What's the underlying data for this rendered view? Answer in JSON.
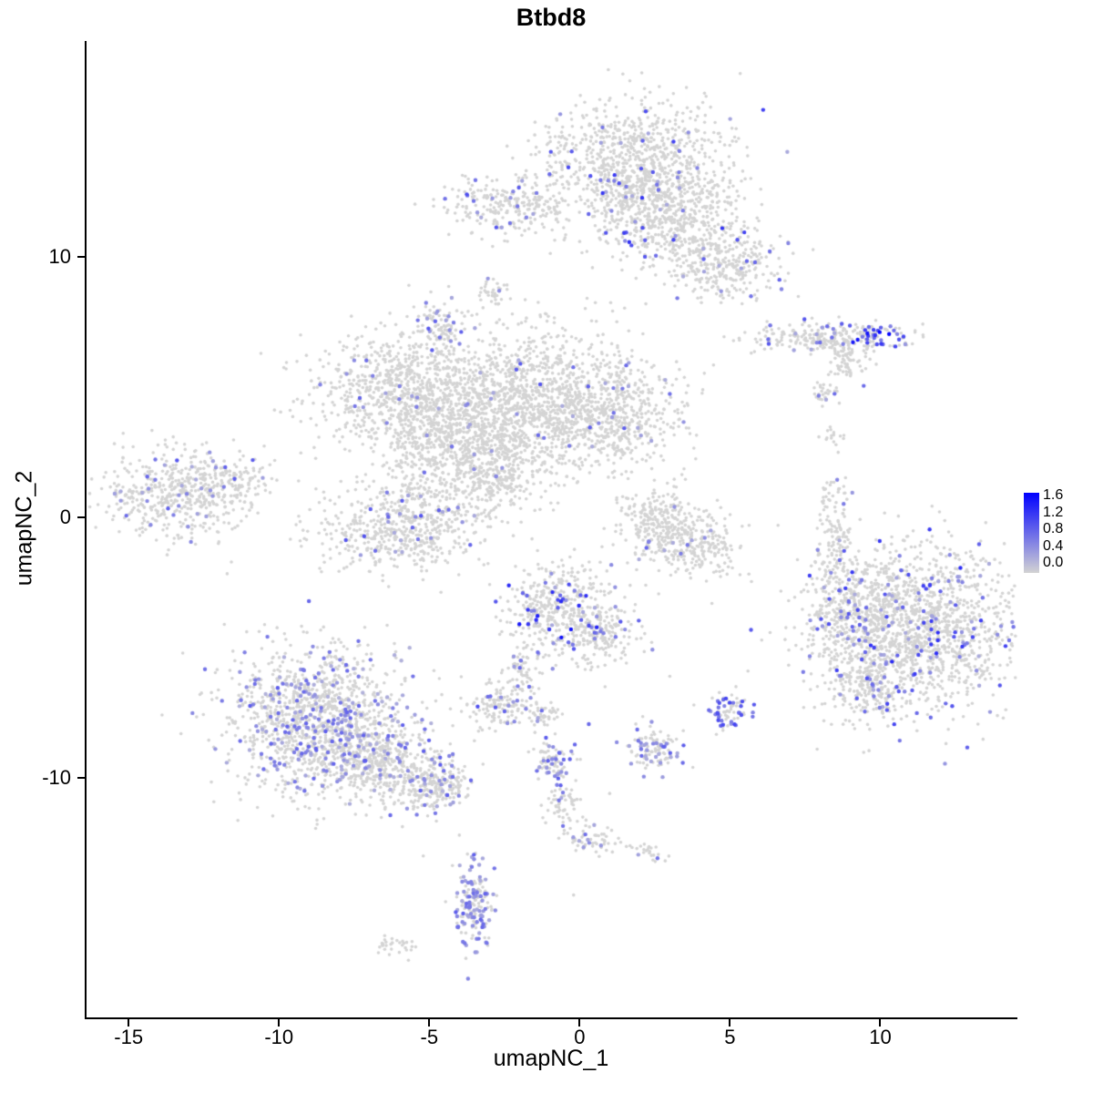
{
  "chart_data": {
    "type": "scatter",
    "title": "Btbd8",
    "xlabel": "umapNC_1",
    "ylabel": "umapNC_2",
    "x_ticks": [
      -15,
      -10,
      -5,
      0,
      5,
      10
    ],
    "y_ticks": [
      -10,
      0,
      10
    ],
    "xlim": [
      -16.4,
      14.5
    ],
    "ylim": [
      -19.2,
      18.3
    ],
    "grid": false,
    "legend": {
      "position": "right",
      "tick_labels": [
        "1.6",
        "1.2",
        "0.8",
        "0.4",
        "0.0"
      ],
      "vmin": 0.0,
      "vmax": 1.6,
      "color_low": "#d3d3d3",
      "color_high": "#0000ff"
    },
    "point_color_zero": "#d4d4d4",
    "point_radius": 1.8,
    "expr_point_radius": 2.2,
    "seed": 11,
    "cluster_fields": [
      "name",
      "cx",
      "cy",
      "sx",
      "sy",
      "n",
      "expr_frac",
      "expr_vmin",
      "expr_vmax"
    ],
    "clusters": [
      [
        "top-main",
        1.9,
        13.6,
        1.45,
        1.15,
        900,
        0.03,
        0.3,
        1.2
      ],
      [
        "top-lower",
        2.9,
        11.5,
        1.25,
        1.0,
        550,
        0.045,
        0.3,
        1.35
      ],
      [
        "top-arm-right",
        4.8,
        9.9,
        1.0,
        0.75,
        320,
        0.05,
        0.3,
        1.0
      ],
      [
        "top-left-blob",
        -2.3,
        11.9,
        1.05,
        0.55,
        260,
        0.05,
        0.3,
        1.0
      ],
      [
        "tiny-upper-mid",
        -2.9,
        8.6,
        0.28,
        0.22,
        35,
        0.1,
        0.3,
        0.8
      ],
      [
        "small-upper-mid",
        -4.6,
        7.3,
        0.35,
        0.5,
        90,
        0.18,
        0.3,
        0.9
      ],
      [
        "central-main",
        -1.6,
        4.4,
        2.0,
        1.35,
        1500,
        0.02,
        0.3,
        1.0
      ],
      [
        "central-left",
        -5.9,
        4.9,
        1.5,
        1.05,
        750,
        0.025,
        0.3,
        0.9
      ],
      [
        "central-lower-left",
        -4.4,
        2.6,
        1.25,
        0.95,
        500,
        0.03,
        0.3,
        0.9
      ],
      [
        "central-right-arm",
        1.3,
        3.9,
        1.05,
        0.9,
        320,
        0.03,
        0.3,
        0.9
      ],
      [
        "central-bridge-down",
        -2.6,
        1.5,
        0.8,
        0.75,
        220,
        0.04,
        0.3,
        0.9
      ],
      [
        "below-central",
        -5.9,
        -0.3,
        1.4,
        0.85,
        600,
        0.05,
        0.3,
        1.0
      ],
      [
        "far-left",
        -13.4,
        0.9,
        1.25,
        0.85,
        520,
        0.06,
        0.3,
        1.0
      ],
      [
        "far-left-tip",
        -11.2,
        1.4,
        0.5,
        0.35,
        70,
        0.05,
        0.3,
        0.8
      ],
      [
        "mid-right-upper",
        2.5,
        -0.1,
        0.65,
        0.75,
        240,
        0.04,
        0.3,
        0.9
      ],
      [
        "mid-right-lower",
        3.8,
        -1.1,
        0.75,
        0.65,
        240,
        0.03,
        0.3,
        0.8
      ],
      [
        "right-strip",
        8.2,
        6.9,
        1.25,
        0.3,
        260,
        0.08,
        0.3,
        1.0
      ],
      [
        "right-strip-tip",
        9.8,
        7.0,
        0.33,
        0.28,
        40,
        0.55,
        0.6,
        1.6
      ],
      [
        "right-small-a",
        9.0,
        5.9,
        0.4,
        0.35,
        60,
        0.05,
        0.3,
        0.8
      ],
      [
        "right-small-b",
        8.1,
        4.7,
        0.3,
        0.25,
        30,
        0.05,
        0.3,
        0.8
      ],
      [
        "right-small-c",
        8.4,
        3.2,
        0.25,
        0.2,
        15,
        0.0,
        0.3,
        0.8
      ],
      [
        "right-vstrip",
        8.45,
        -0.6,
        0.3,
        1.05,
        140,
        0.07,
        0.3,
        0.9
      ],
      [
        "right-big",
        11.3,
        -4.3,
        1.7,
        1.55,
        1500,
        0.09,
        0.3,
        1.3
      ],
      [
        "right-big-left-arm",
        9.0,
        -3.7,
        0.8,
        1.0,
        300,
        0.1,
        0.3,
        1.2
      ],
      [
        "right-big-tip",
        9.5,
        -6.6,
        0.6,
        0.55,
        150,
        0.1,
        0.3,
        1.0
      ],
      [
        "bottom-left-main",
        -8.8,
        -7.7,
        1.5,
        1.4,
        1250,
        0.2,
        0.25,
        0.9
      ],
      [
        "bottom-left-arm",
        -6.7,
        -9.4,
        0.95,
        0.8,
        420,
        0.12,
        0.25,
        0.9
      ],
      [
        "bottom-left-tip",
        -4.9,
        -10.3,
        0.7,
        0.5,
        240,
        0.15,
        0.25,
        0.9
      ],
      [
        "center-bottom",
        -0.7,
        -3.4,
        0.85,
        0.85,
        430,
        0.12,
        0.3,
        1.5
      ],
      [
        "center-bottom-arm",
        0.75,
        -4.6,
        0.6,
        0.5,
        150,
        0.1,
        0.3,
        1.0
      ],
      [
        "center-bottom-bridge",
        -1.9,
        -5.9,
        0.3,
        0.65,
        70,
        0.06,
        0.3,
        0.8
      ],
      [
        "small-below-center",
        -2.6,
        -7.2,
        0.55,
        0.45,
        130,
        0.15,
        0.3,
        1.0
      ],
      [
        "tiny-below-center",
        -1.2,
        -7.6,
        0.3,
        0.25,
        40,
        0.08,
        0.3,
        0.8
      ],
      [
        "small-right-low",
        5.0,
        -7.4,
        0.35,
        0.4,
        70,
        0.45,
        0.4,
        1.1
      ],
      [
        "small-mid-low",
        2.45,
        -8.9,
        0.5,
        0.4,
        110,
        0.25,
        0.3,
        0.9
      ],
      [
        "thin-chain-a",
        -0.9,
        -9.4,
        0.35,
        0.5,
        85,
        0.25,
        0.3,
        0.9
      ],
      [
        "thin-chain-b",
        -0.5,
        -11.2,
        0.3,
        0.55,
        60,
        0.12,
        0.3,
        0.9
      ],
      [
        "thin-chain-c",
        0.6,
        -12.4,
        0.55,
        0.3,
        55,
        0.15,
        0.3,
        0.9
      ],
      [
        "thin-chain-tail",
        2.4,
        -12.9,
        0.3,
        0.2,
        22,
        0.15,
        0.3,
        0.8
      ],
      [
        "bottom-strip",
        -3.5,
        -14.9,
        0.3,
        0.85,
        170,
        0.45,
        0.3,
        0.9
      ],
      [
        "bottom-tiny",
        -6.1,
        -16.4,
        0.35,
        0.18,
        30,
        0.06,
        0.3,
        0.7
      ]
    ],
    "singles": [
      [
        -10.6,
        6.3
      ],
      [
        2.2,
        -2.6
      ],
      [
        4.4,
        -3.3
      ],
      [
        -0.2,
        -14.5
      ],
      [
        1.0,
        -10.6
      ],
      [
        8.6,
        2.5
      ],
      [
        7.9,
        -8.9
      ],
      [
        3.0,
        -6.1
      ],
      [
        -4.0,
        -12.2
      ],
      [
        -5.2,
        -13.0
      ],
      [
        6.6,
        -0.3
      ],
      [
        5.6,
        -5.9
      ]
    ]
  }
}
